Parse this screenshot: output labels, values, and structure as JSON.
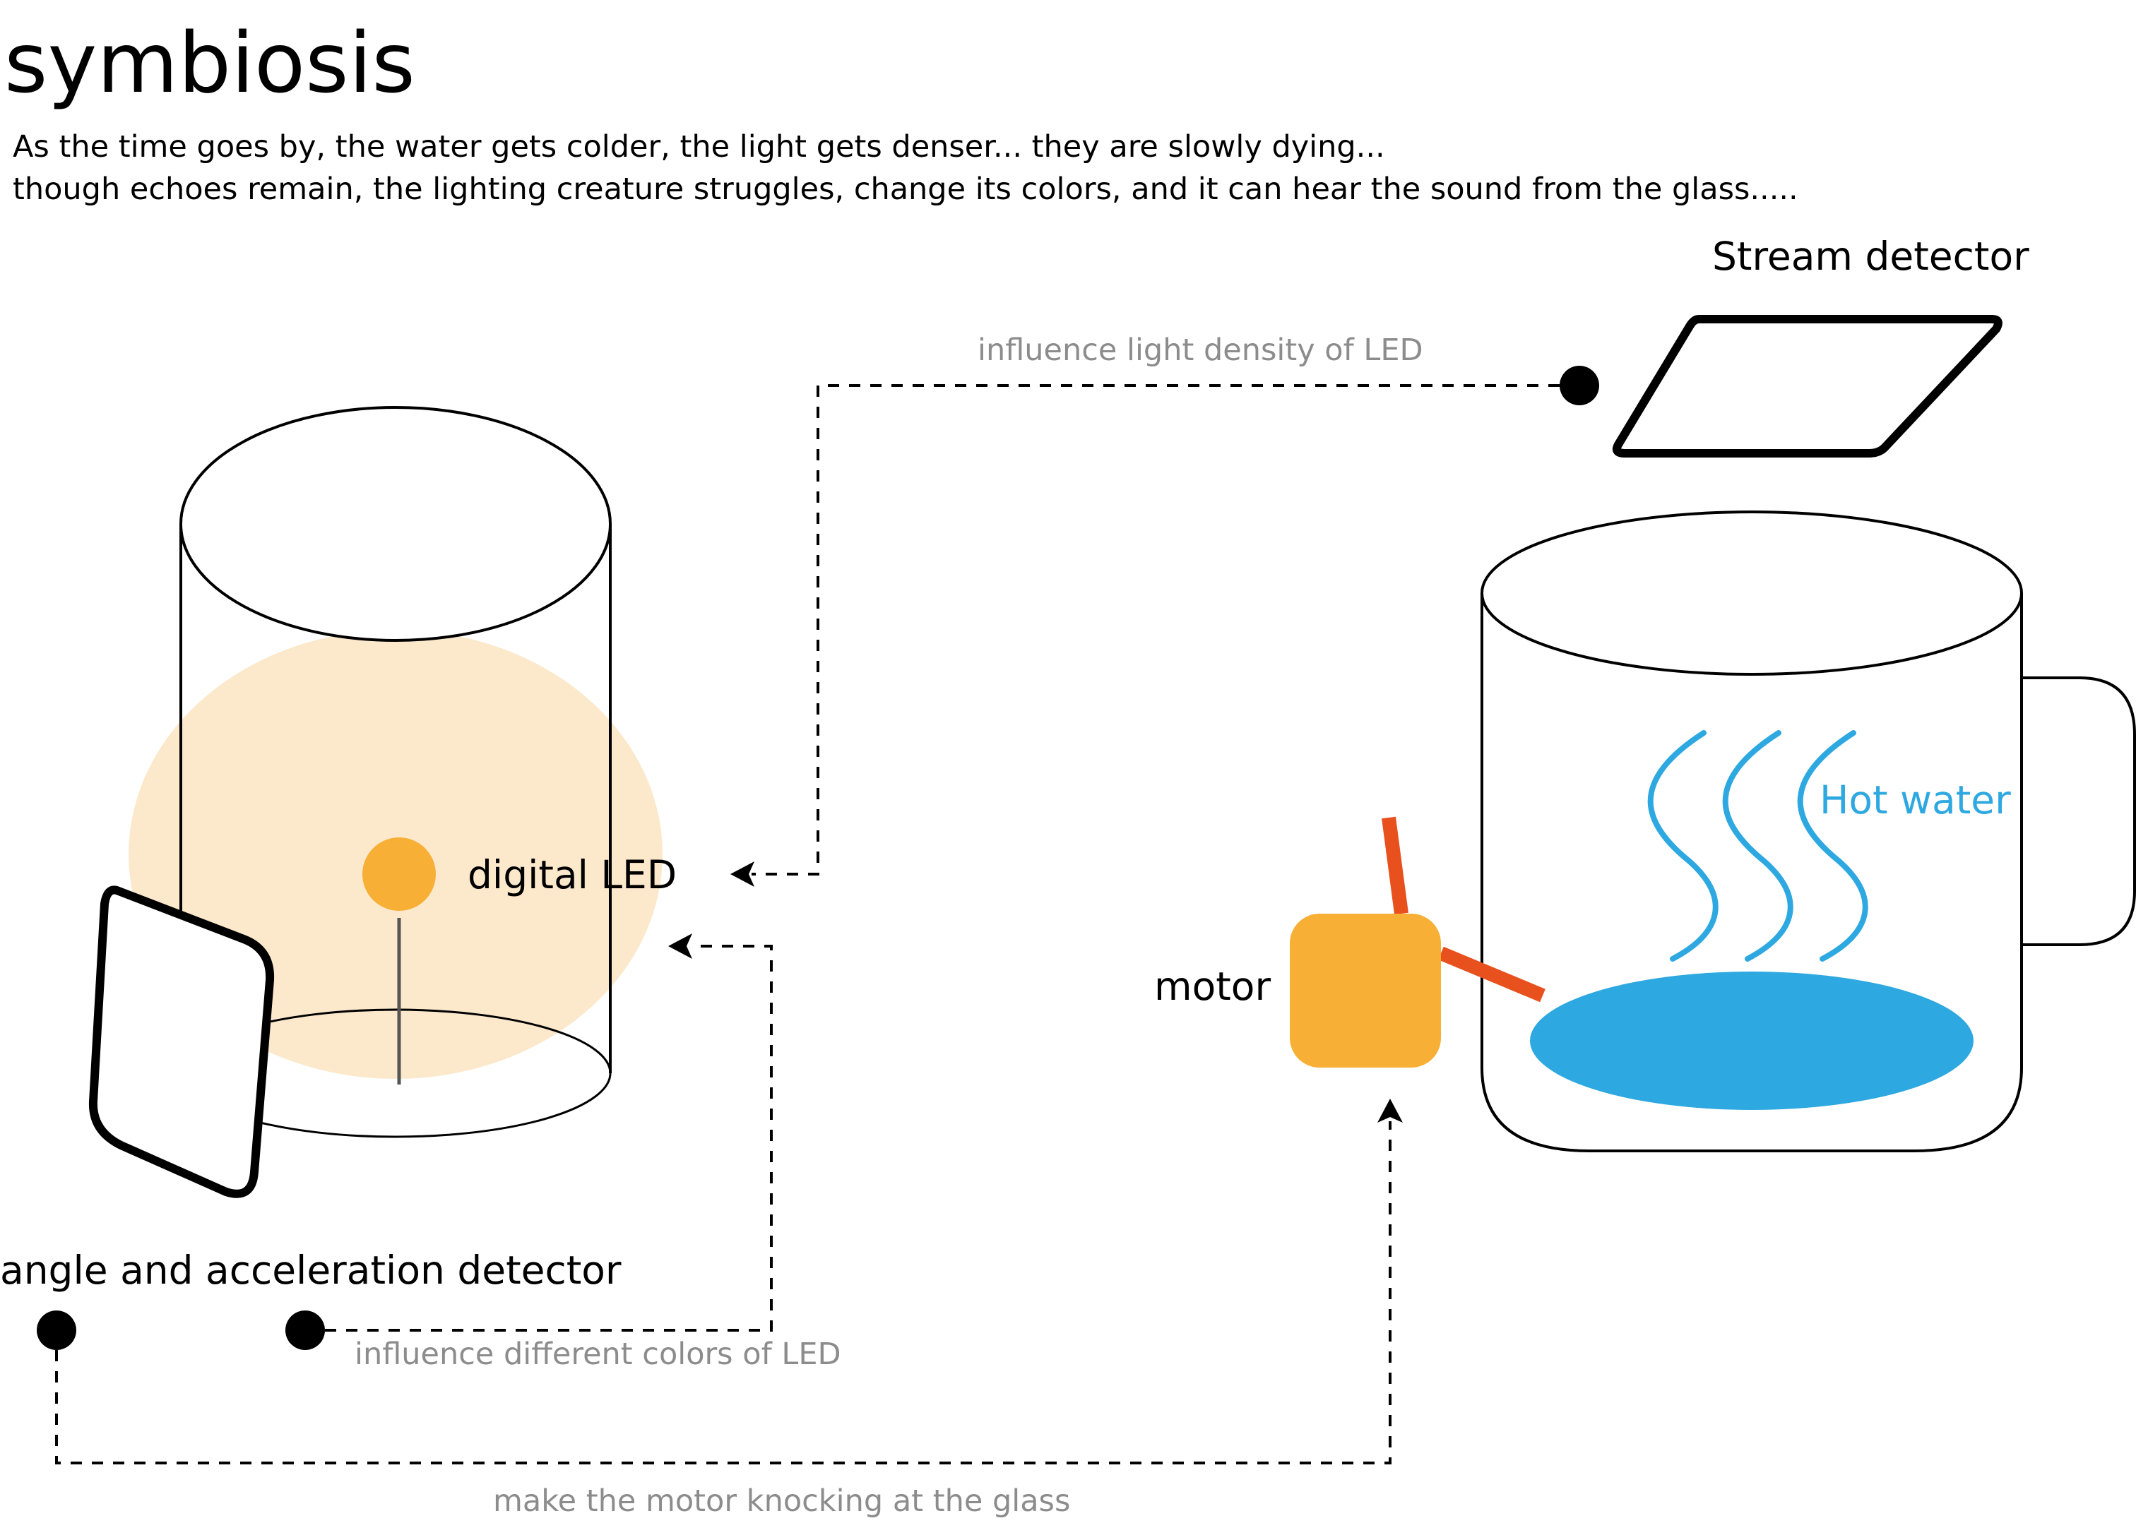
{
  "title": "symbiosis",
  "description": {
    "line1": "As the time goes by, the water gets colder, the light gets denser... they are slowly dying...",
    "line2": "though echoes remain, the lighting creature struggles, change its colors, and it can hear the sound from the glass....."
  },
  "labels": {
    "stream_detector": "Stream detector",
    "digital_led": "digital LED",
    "motor": "motor",
    "hot_water": "Hot water",
    "angle_detector": "angle and acceleration detector"
  },
  "connections": {
    "light_density": "influence light density of LED",
    "colors": "influence different colors of LED",
    "motor_knocking": "make the motor knocking at the glass"
  },
  "colors": {
    "glow": "#fce9cc",
    "led": "#f7b035",
    "motor": "#f7b035",
    "arm": "#e8501e",
    "water": "#2ea8e0",
    "grey_text": "#8c8c8c"
  }
}
